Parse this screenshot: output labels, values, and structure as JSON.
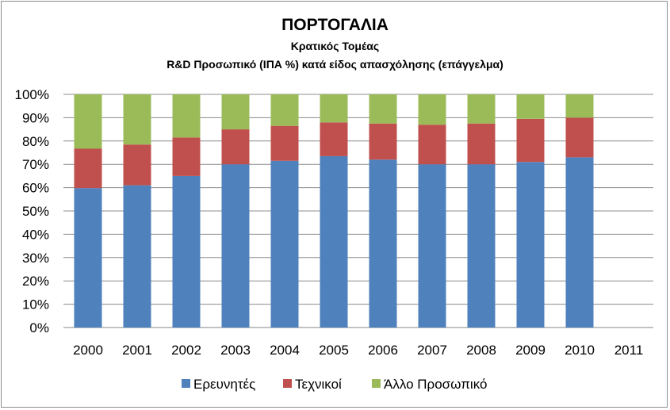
{
  "chart_data": {
    "type": "bar",
    "stacked": true,
    "title": "ΠΟΡΤΟΓΑΛΙΑ",
    "subtitle": "Κρατικός Τομέας",
    "subtitle2": "R&D  Προσωπικό (ΙΠΑ %) κατά είδος απασχόλησης (επάγγελμα)",
    "categories": [
      "2000",
      "2001",
      "2002",
      "2003",
      "2004",
      "2005",
      "2006",
      "2007",
      "2008",
      "2009",
      "2010",
      "2011"
    ],
    "series": [
      {
        "name": "Ερευνητές",
        "color": "#4f81bd",
        "values": [
          59.8,
          61,
          65,
          70,
          71.5,
          73.5,
          72,
          70,
          70,
          71,
          73,
          null
        ]
      },
      {
        "name": "Τεχνικοί",
        "color": "#c0504d",
        "values": [
          16.9,
          17.5,
          16.5,
          15,
          15,
          14.5,
          15.5,
          17,
          17.5,
          18.5,
          17,
          null
        ]
      },
      {
        "name": "Άλλο Προσωπικό",
        "color": "#9bbb59",
        "values": [
          23.3,
          21.5,
          18.5,
          15,
          13.5,
          12,
          12.5,
          13,
          12.5,
          10.5,
          10,
          null
        ]
      }
    ],
    "ylim": [
      0,
      100
    ],
    "yticks": [
      "0%",
      "10%",
      "20%",
      "30%",
      "40%",
      "50%",
      "60%",
      "70%",
      "80%",
      "90%",
      "100%"
    ],
    "grid": true,
    "legend": "bottom"
  }
}
